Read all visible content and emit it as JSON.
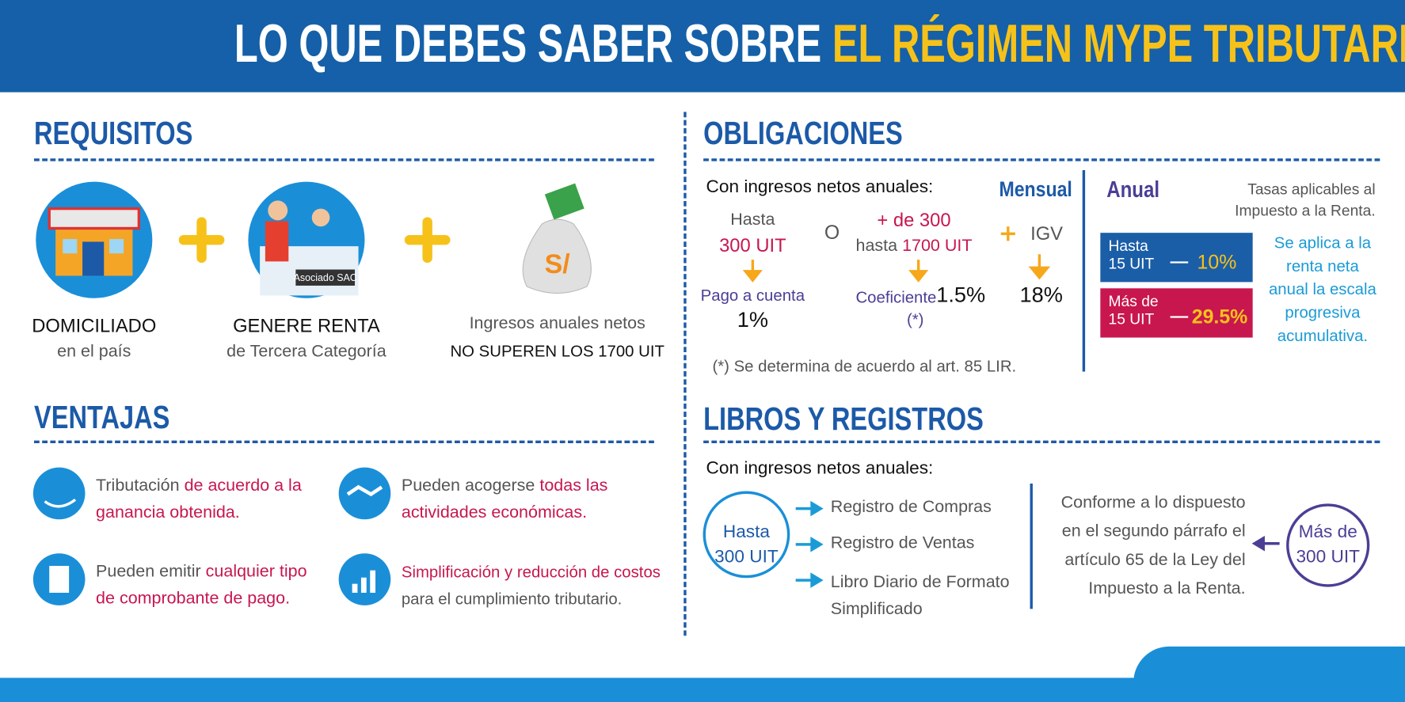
{
  "header": {
    "title_part1": "LO QUE DEBES SABER SOBRE",
    "title_part2": "EL RÉGIMEN MYPE TRIBUTARIO"
  },
  "requisitos": {
    "title": "REQUISITOS",
    "items": [
      {
        "title": "DOMICILIADO",
        "subtitle": "en el país"
      },
      {
        "title": "GENERE RENTA",
        "subtitle": "de Tercera Categoría",
        "badge": "Asociado SAC"
      },
      {
        "title": "Ingresos anuales netos",
        "subtitle": "NO SUPEREN LOS 1700 UIT",
        "icon": "S/"
      }
    ]
  },
  "ventajas": {
    "title": "VENTAJAS",
    "items": [
      {
        "parts": [
          "Tributación",
          "de acuerdo a la ganancia obtenida."
        ]
      },
      {
        "parts": [
          "Pueden acogerse",
          "todas las actividades económicas."
        ]
      },
      {
        "parts": [
          "Pueden emitir",
          "cualquier tipo de comprobante de pago."
        ]
      },
      {
        "parts": [
          "Simplificación y reducción de costos",
          "para el cumplimiento tributario."
        ]
      }
    ]
  },
  "obligaciones": {
    "title": "OBLIGACIONES",
    "intro": "Con ingresos netos anuales:",
    "mensual": "Mensual",
    "col1": {
      "top": "Hasta",
      "limit": "300 UIT",
      "label": "Pago a cuenta",
      "rate": "1%"
    },
    "or": "O",
    "col2": {
      "top": "+ de 300",
      "mid": "hasta",
      "limit": "1700 UIT",
      "label": "Coeficiente",
      "rate": "1.5%",
      "mark": "(*)"
    },
    "igv": {
      "label": "IGV",
      "rate": "18%"
    },
    "note": "(*) Se determina de acuerdo al art. 85 LIR.",
    "anual": "Anual",
    "anual_note": "Tasas aplicables al Impuesto a la Renta.",
    "rates": [
      {
        "label": "Hasta 15 UIT",
        "rate": "10%"
      },
      {
        "label": "Más de 15 UIT",
        "rate": "29.5%"
      }
    ],
    "anual_desc": "Se aplica a la renta neta anual la escala progresiva acumulativa."
  },
  "libros": {
    "title": "LIBROS Y REGISTROS",
    "intro": "Con ingresos netos anuales:",
    "left_circle": "Hasta 300 UIT",
    "list": [
      "Registro de Compras",
      "Registro de Ventas",
      "Libro Diario de Formato Simplificado"
    ],
    "paragraph": "Conforme a lo dispuesto en el segundo párrafo el artículo 65 de la Ley del Impuesto a la Renta.",
    "right_circle": "Más de 300 UIT"
  }
}
